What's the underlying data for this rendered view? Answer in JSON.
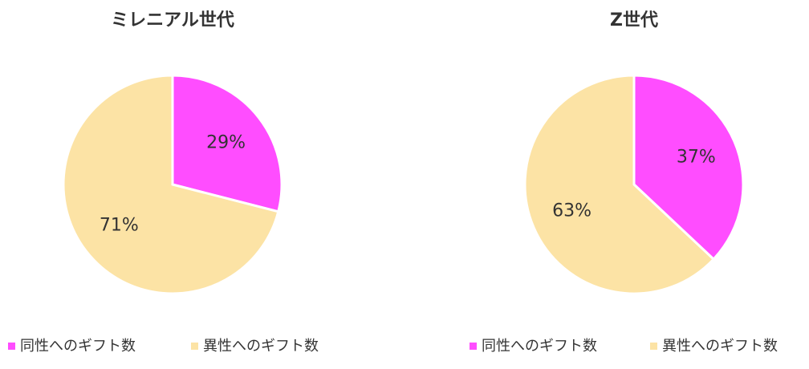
{
  "chart_data": [
    {
      "type": "pie",
      "title": "ミレニアル世代",
      "categories": [
        "同性へのギフト数",
        "異性へのギフト数"
      ],
      "values": [
        29,
        71
      ],
      "value_labels": [
        "29%",
        "71%"
      ],
      "colors": [
        "#ff4dff",
        "#fce3a5"
      ]
    },
    {
      "type": "pie",
      "title": "Z世代",
      "categories": [
        "同性へのギフト数",
        "異性へのギフト数"
      ],
      "values": [
        37,
        63
      ],
      "value_labels": [
        "37%",
        "63%"
      ],
      "colors": [
        "#ff4dff",
        "#fce3a5"
      ]
    }
  ]
}
